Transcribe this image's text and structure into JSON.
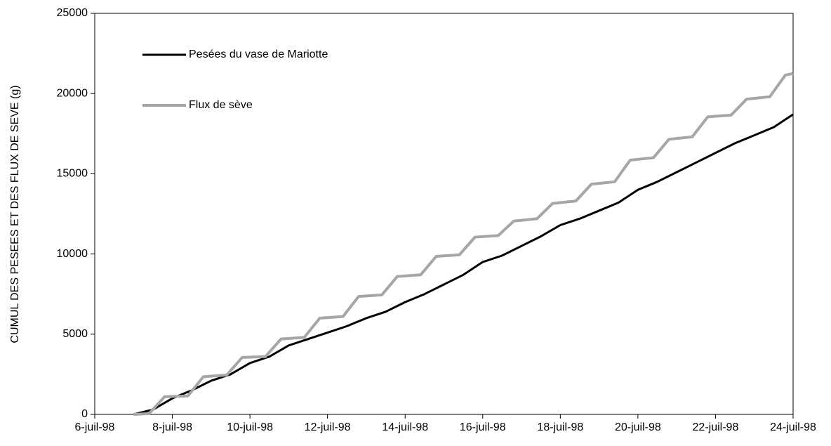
{
  "chart_data": {
    "type": "line",
    "y_label": "CUMUL DES PESEES ET DES FLUX DE SEVE (g)",
    "xlim": [
      6,
      24
    ],
    "ylim": [
      0,
      25000
    ],
    "xticks": [
      {
        "value": 6,
        "label": "6-juil-98"
      },
      {
        "value": 8,
        "label": "8-juil-98"
      },
      {
        "value": 10,
        "label": "10-juil-98"
      },
      {
        "value": 12,
        "label": "12-juil-98"
      },
      {
        "value": 14,
        "label": "14-juil-98"
      },
      {
        "value": 16,
        "label": "16-juil-98"
      },
      {
        "value": 18,
        "label": "18-juil-98"
      },
      {
        "value": 20,
        "label": "20-juil-98"
      },
      {
        "value": 22,
        "label": "22-juil-98"
      },
      {
        "value": 24,
        "label": "24-juil-98"
      }
    ],
    "yticks": [
      0,
      5000,
      10000,
      15000,
      20000,
      25000
    ],
    "legend": "upper left",
    "grid": false,
    "series": [
      {
        "name": "Pesées du vase de Mariotte",
        "color": "#000000",
        "width": 3,
        "x": [
          7.0,
          7.5,
          8.0,
          8.5,
          9.0,
          9.5,
          10.0,
          10.5,
          11.0,
          11.5,
          12.0,
          12.5,
          13.0,
          13.5,
          14.0,
          14.5,
          15.0,
          15.5,
          16.0,
          16.5,
          17.0,
          17.5,
          18.0,
          18.5,
          19.0,
          19.5,
          20.0,
          20.5,
          21.0,
          21.5,
          22.0,
          22.5,
          23.0,
          23.5,
          24.0
        ],
        "values": [
          0,
          300,
          1000,
          1500,
          2100,
          2500,
          3200,
          3600,
          4300,
          4700,
          5100,
          5500,
          6000,
          6400,
          7000,
          7500,
          8100,
          8700,
          9500,
          9900,
          10500,
          11100,
          11800,
          12200,
          12700,
          13200,
          14000,
          14500,
          15100,
          15700,
          16300,
          16900,
          17400,
          17900,
          18700
        ]
      },
      {
        "name": "Flux de sève",
        "color": "#a6a6a6",
        "width": 4,
        "x": [
          7.0,
          7.4,
          7.8,
          8.4,
          8.8,
          9.4,
          9.8,
          10.4,
          10.8,
          11.4,
          11.8,
          12.4,
          12.8,
          13.4,
          13.8,
          14.4,
          14.8,
          15.4,
          15.8,
          16.4,
          16.8,
          17.4,
          17.8,
          18.4,
          18.8,
          19.4,
          19.8,
          20.4,
          20.8,
          21.4,
          21.8,
          22.4,
          22.8,
          23.4,
          23.8,
          24.0
        ],
        "values": [
          0,
          50,
          1100,
          1150,
          2350,
          2450,
          3550,
          3600,
          4700,
          4800,
          6000,
          6100,
          7350,
          7450,
          8600,
          8700,
          9850,
          9950,
          11050,
          11150,
          12050,
          12200,
          13150,
          13300,
          14350,
          14500,
          15850,
          16000,
          17150,
          17300,
          18550,
          18650,
          19650,
          19800,
          21150,
          21250
        ]
      }
    ]
  }
}
